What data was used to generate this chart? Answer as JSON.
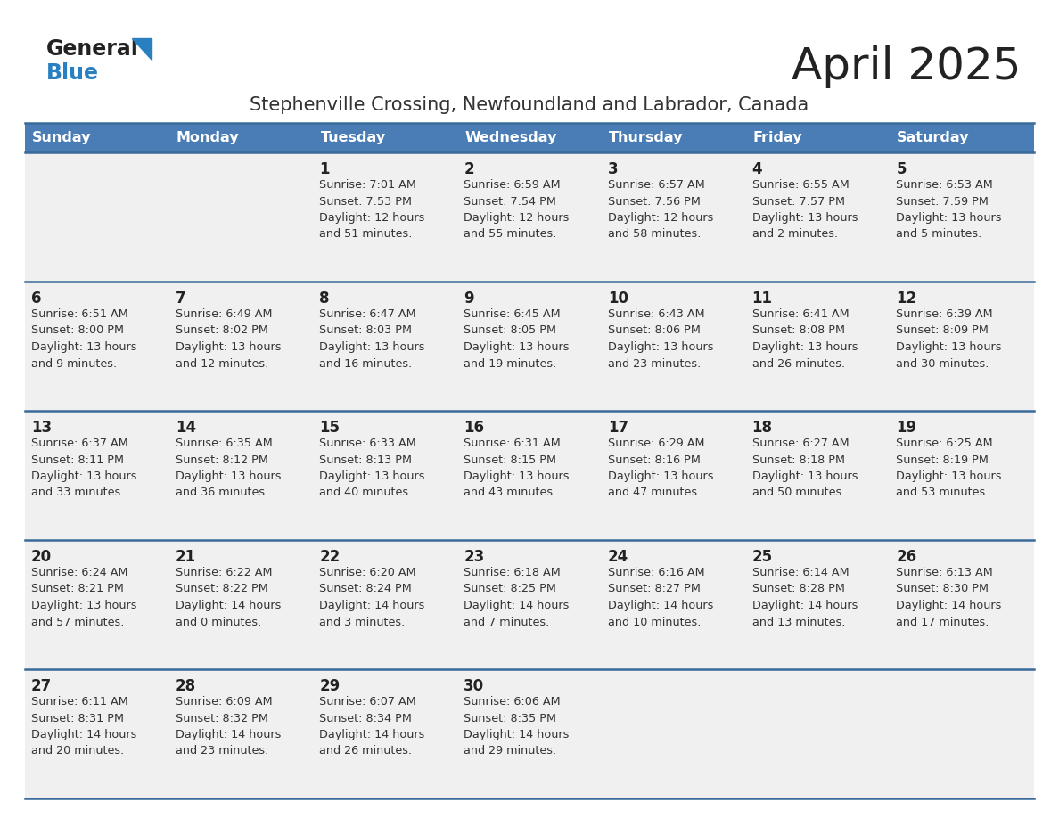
{
  "title": "April 2025",
  "subtitle": "Stephenville Crossing, Newfoundland and Labrador, Canada",
  "days_of_week": [
    "Sunday",
    "Monday",
    "Tuesday",
    "Wednesday",
    "Thursday",
    "Friday",
    "Saturday"
  ],
  "header_bg": "#4a7db5",
  "header_text": "#ffffff",
  "row_bg": "#f0f0f0",
  "cell_text_color": "#333333",
  "day_number_color": "#222222",
  "border_color": "#3a6a9a",
  "title_color": "#222222",
  "subtitle_color": "#333333",
  "logo_general_color": "#222222",
  "logo_blue_color": "#2980c0",
  "weeks": [
    {
      "days": [
        {
          "date": null,
          "info": null
        },
        {
          "date": null,
          "info": null
        },
        {
          "date": "1",
          "info": "Sunrise: 7:01 AM\nSunset: 7:53 PM\nDaylight: 12 hours\nand 51 minutes."
        },
        {
          "date": "2",
          "info": "Sunrise: 6:59 AM\nSunset: 7:54 PM\nDaylight: 12 hours\nand 55 minutes."
        },
        {
          "date": "3",
          "info": "Sunrise: 6:57 AM\nSunset: 7:56 PM\nDaylight: 12 hours\nand 58 minutes."
        },
        {
          "date": "4",
          "info": "Sunrise: 6:55 AM\nSunset: 7:57 PM\nDaylight: 13 hours\nand 2 minutes."
        },
        {
          "date": "5",
          "info": "Sunrise: 6:53 AM\nSunset: 7:59 PM\nDaylight: 13 hours\nand 5 minutes."
        }
      ]
    },
    {
      "days": [
        {
          "date": "6",
          "info": "Sunrise: 6:51 AM\nSunset: 8:00 PM\nDaylight: 13 hours\nand 9 minutes."
        },
        {
          "date": "7",
          "info": "Sunrise: 6:49 AM\nSunset: 8:02 PM\nDaylight: 13 hours\nand 12 minutes."
        },
        {
          "date": "8",
          "info": "Sunrise: 6:47 AM\nSunset: 8:03 PM\nDaylight: 13 hours\nand 16 minutes."
        },
        {
          "date": "9",
          "info": "Sunrise: 6:45 AM\nSunset: 8:05 PM\nDaylight: 13 hours\nand 19 minutes."
        },
        {
          "date": "10",
          "info": "Sunrise: 6:43 AM\nSunset: 8:06 PM\nDaylight: 13 hours\nand 23 minutes."
        },
        {
          "date": "11",
          "info": "Sunrise: 6:41 AM\nSunset: 8:08 PM\nDaylight: 13 hours\nand 26 minutes."
        },
        {
          "date": "12",
          "info": "Sunrise: 6:39 AM\nSunset: 8:09 PM\nDaylight: 13 hours\nand 30 minutes."
        }
      ]
    },
    {
      "days": [
        {
          "date": "13",
          "info": "Sunrise: 6:37 AM\nSunset: 8:11 PM\nDaylight: 13 hours\nand 33 minutes."
        },
        {
          "date": "14",
          "info": "Sunrise: 6:35 AM\nSunset: 8:12 PM\nDaylight: 13 hours\nand 36 minutes."
        },
        {
          "date": "15",
          "info": "Sunrise: 6:33 AM\nSunset: 8:13 PM\nDaylight: 13 hours\nand 40 minutes."
        },
        {
          "date": "16",
          "info": "Sunrise: 6:31 AM\nSunset: 8:15 PM\nDaylight: 13 hours\nand 43 minutes."
        },
        {
          "date": "17",
          "info": "Sunrise: 6:29 AM\nSunset: 8:16 PM\nDaylight: 13 hours\nand 47 minutes."
        },
        {
          "date": "18",
          "info": "Sunrise: 6:27 AM\nSunset: 8:18 PM\nDaylight: 13 hours\nand 50 minutes."
        },
        {
          "date": "19",
          "info": "Sunrise: 6:25 AM\nSunset: 8:19 PM\nDaylight: 13 hours\nand 53 minutes."
        }
      ]
    },
    {
      "days": [
        {
          "date": "20",
          "info": "Sunrise: 6:24 AM\nSunset: 8:21 PM\nDaylight: 13 hours\nand 57 minutes."
        },
        {
          "date": "21",
          "info": "Sunrise: 6:22 AM\nSunset: 8:22 PM\nDaylight: 14 hours\nand 0 minutes."
        },
        {
          "date": "22",
          "info": "Sunrise: 6:20 AM\nSunset: 8:24 PM\nDaylight: 14 hours\nand 3 minutes."
        },
        {
          "date": "23",
          "info": "Sunrise: 6:18 AM\nSunset: 8:25 PM\nDaylight: 14 hours\nand 7 minutes."
        },
        {
          "date": "24",
          "info": "Sunrise: 6:16 AM\nSunset: 8:27 PM\nDaylight: 14 hours\nand 10 minutes."
        },
        {
          "date": "25",
          "info": "Sunrise: 6:14 AM\nSunset: 8:28 PM\nDaylight: 14 hours\nand 13 minutes."
        },
        {
          "date": "26",
          "info": "Sunrise: 6:13 AM\nSunset: 8:30 PM\nDaylight: 14 hours\nand 17 minutes."
        }
      ]
    },
    {
      "days": [
        {
          "date": "27",
          "info": "Sunrise: 6:11 AM\nSunset: 8:31 PM\nDaylight: 14 hours\nand 20 minutes."
        },
        {
          "date": "28",
          "info": "Sunrise: 6:09 AM\nSunset: 8:32 PM\nDaylight: 14 hours\nand 23 minutes."
        },
        {
          "date": "29",
          "info": "Sunrise: 6:07 AM\nSunset: 8:34 PM\nDaylight: 14 hours\nand 26 minutes."
        },
        {
          "date": "30",
          "info": "Sunrise: 6:06 AM\nSunset: 8:35 PM\nDaylight: 14 hours\nand 29 minutes."
        },
        {
          "date": null,
          "info": null
        },
        {
          "date": null,
          "info": null
        },
        {
          "date": null,
          "info": null
        }
      ]
    }
  ]
}
